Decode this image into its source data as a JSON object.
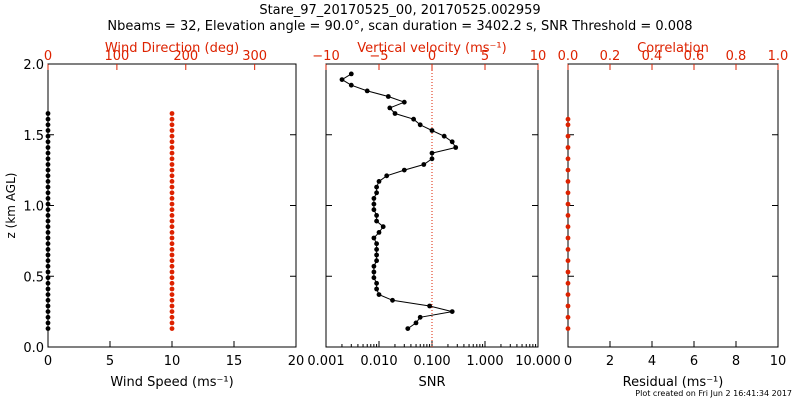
{
  "title": "Stare_97_20170525_00, 20170525.002959",
  "subtitle": "Nbeams = 32, Elevation angle = 90.0°, scan duration = 3402.2 s, SNR Threshold = 0.008",
  "footer": "Plot created on Fri Jun  2 16:41:34 2017",
  "colors": {
    "axis": "#000000",
    "accent": "#dd2200",
    "series": "#000000"
  },
  "chart_data": [
    {
      "type": "scatter",
      "ylabel": "z (km AGL)",
      "ylim": [
        0,
        2.0
      ],
      "yticks": [
        "0.0",
        "0.5",
        "1.0",
        "1.5",
        "2.0"
      ],
      "xlabel": "Wind Speed (ms⁻¹)",
      "xlim": [
        0,
        20
      ],
      "xticks": [
        "0",
        "5",
        "10",
        "15",
        "20"
      ],
      "top_xlabel": "Wind Direction (deg)",
      "top_xlim": [
        0,
        360
      ],
      "top_xticks": [
        "0",
        "100",
        "200",
        "300"
      ],
      "series": [
        {
          "axis": "bottom",
          "color": "#000000",
          "z": [
            0.13,
            0.17,
            0.21,
            0.25,
            0.29,
            0.33,
            0.37,
            0.41,
            0.45,
            0.49,
            0.53,
            0.57,
            0.61,
            0.65,
            0.69,
            0.73,
            0.77,
            0.81,
            0.85,
            0.89,
            0.93,
            0.97,
            1.01,
            1.05,
            1.09,
            1.13,
            1.17,
            1.21,
            1.25,
            1.29,
            1.33,
            1.37,
            1.41,
            1.45,
            1.49,
            1.53,
            1.57,
            1.61,
            1.65
          ],
          "x": [
            0,
            0,
            0,
            0,
            0,
            0,
            0,
            0,
            0,
            0,
            0,
            0,
            0,
            0,
            0,
            0,
            0,
            0,
            0,
            0,
            0,
            0,
            0,
            0,
            0,
            0,
            0,
            0,
            0,
            0,
            0,
            0,
            0,
            0,
            0,
            0,
            0,
            0,
            0
          ]
        },
        {
          "axis": "top",
          "color": "#dd2200",
          "z": [
            0.13,
            0.17,
            0.21,
            0.25,
            0.29,
            0.33,
            0.37,
            0.41,
            0.45,
            0.49,
            0.53,
            0.57,
            0.61,
            0.65,
            0.69,
            0.73,
            0.77,
            0.81,
            0.85,
            0.89,
            0.93,
            0.97,
            1.01,
            1.05,
            1.09,
            1.13,
            1.17,
            1.21,
            1.25,
            1.29,
            1.33,
            1.37,
            1.41,
            1.45,
            1.49,
            1.53,
            1.57,
            1.61,
            1.65
          ],
          "x": [
            180,
            180,
            180,
            180,
            180,
            180,
            180,
            180,
            180,
            180,
            180,
            180,
            180,
            180,
            180,
            180,
            180,
            180,
            180,
            180,
            180,
            180,
            180,
            180,
            180,
            180,
            180,
            180,
            180,
            180,
            180,
            180,
            180,
            180,
            180,
            180,
            180,
            180,
            180
          ]
        }
      ]
    },
    {
      "type": "line",
      "xlabel": "SNR",
      "xscale": "log",
      "xlim": [
        0.001,
        10
      ],
      "xticks": [
        "0.001",
        "0.010",
        "0.100",
        "1.000",
        "10.000"
      ],
      "top_xlabel": "Vertical velocity (ms⁻¹)",
      "top_xlim": [
        -10,
        10
      ],
      "top_xticks": [
        "−10",
        "−5",
        "0",
        "5",
        "10"
      ],
      "ylim": [
        0,
        2.0
      ],
      "reference_line": {
        "axis": "top",
        "x": 0,
        "style": "dotted",
        "color": "#dd2200"
      },
      "series": [
        {
          "axis": "bottom",
          "color": "#000000",
          "z": [
            0.13,
            0.17,
            0.21,
            0.25,
            0.29,
            0.33,
            0.37,
            0.41,
            0.45,
            0.49,
            0.53,
            0.57,
            0.61,
            0.65,
            0.69,
            0.73,
            0.77,
            0.81,
            0.85,
            0.89,
            0.93,
            0.97,
            1.01,
            1.05,
            1.09,
            1.13,
            1.17,
            1.21,
            1.25,
            1.29,
            1.33,
            1.37,
            1.41,
            1.45,
            1.49,
            1.53,
            1.57,
            1.61,
            1.65,
            1.69,
            1.73,
            1.77,
            1.81,
            1.85,
            1.89,
            1.93
          ],
          "x": [
            0.035,
            0.05,
            0.06,
            0.24,
            0.09,
            0.018,
            0.01,
            0.009,
            0.009,
            0.008,
            0.008,
            0.008,
            0.009,
            0.009,
            0.009,
            0.009,
            0.008,
            0.01,
            0.012,
            0.009,
            0.009,
            0.008,
            0.008,
            0.008,
            0.009,
            0.009,
            0.01,
            0.014,
            0.03,
            0.07,
            0.1,
            0.1,
            0.28,
            0.24,
            0.17,
            0.1,
            0.06,
            0.045,
            0.02,
            0.016,
            0.03,
            0.015,
            0.006,
            0.003,
            0.002,
            0.003
          ]
        }
      ]
    },
    {
      "type": "scatter",
      "xlabel": "Residual (ms⁻¹)",
      "xlim": [
        0,
        10
      ],
      "xticks": [
        "0",
        "2",
        "4",
        "6",
        "8",
        "10"
      ],
      "top_xlabel": "Correlation",
      "top_xlim": [
        0,
        1
      ],
      "top_xticks": [
        "0.0",
        "0.2",
        "0.4",
        "0.6",
        "0.8",
        "1.0"
      ],
      "ylim": [
        0,
        2.0
      ],
      "series": [
        {
          "axis": "top",
          "color": "#dd2200",
          "z": [
            0.13,
            0.21,
            0.29,
            0.37,
            0.45,
            0.53,
            0.61,
            0.69,
            0.77,
            0.85,
            0.93,
            1.01,
            1.09,
            1.17,
            1.25,
            1.33,
            1.41,
            1.49,
            1.57,
            1.61
          ],
          "x": [
            0,
            0,
            0,
            0,
            0,
            0,
            0,
            0,
            0,
            0,
            0,
            0,
            0,
            0,
            0,
            0,
            0,
            0,
            0,
            0
          ]
        }
      ]
    }
  ]
}
